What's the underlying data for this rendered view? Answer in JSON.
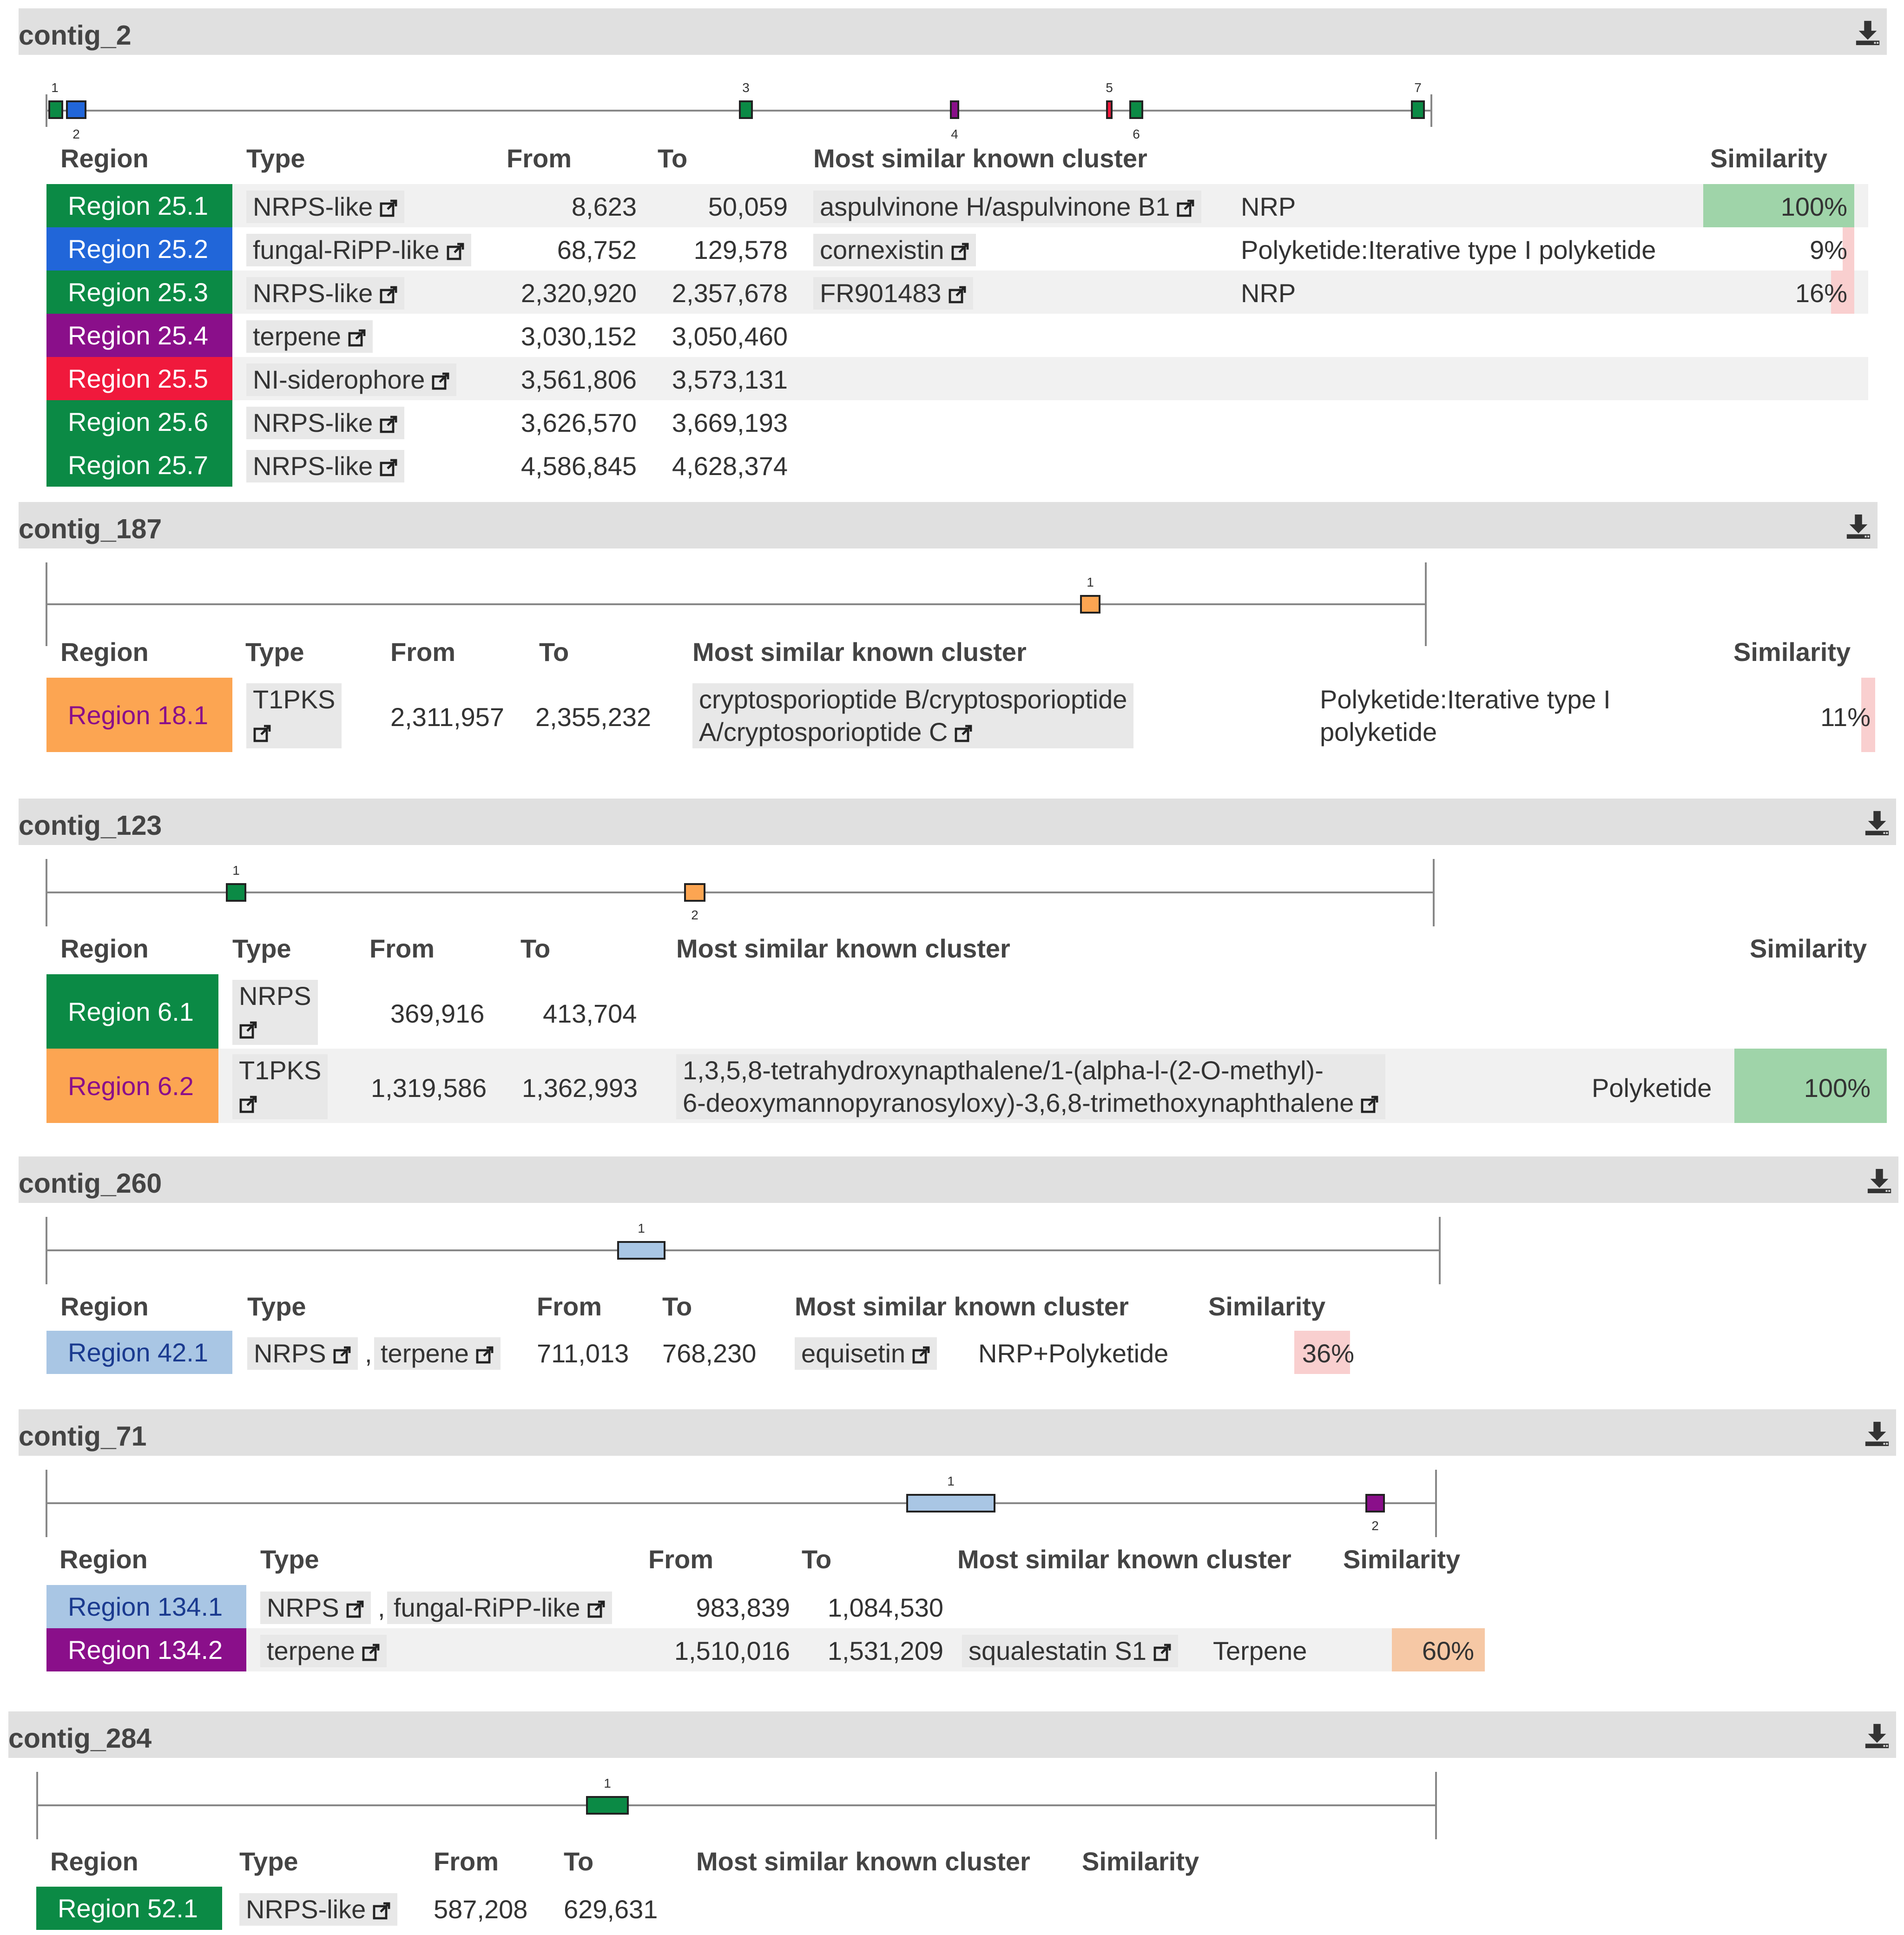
{
  "colors": {
    "nrps": "#0b8a45",
    "fungal_ripp": "#2166d9",
    "terpene": "#8a0f8a",
    "siderophore": "#f0193c",
    "t1pks": "#fca552",
    "hybrid": "#a9c6e4",
    "sim_high": "#9fd4a9",
    "sim_low": "#f9cfcf",
    "sim_mid": "#f6c8a5"
  },
  "headers": {
    "region": "Region",
    "type": "Type",
    "from": "From",
    "to": "To",
    "cluster": "Most similar known cluster",
    "similarity": "Similarity"
  },
  "contigs": [
    {
      "name": "contig_2",
      "map_labels": [
        "1",
        "2",
        "3",
        "4",
        "5",
        "6",
        "7"
      ],
      "regions": [
        {
          "label": "Region 25.1",
          "type": "NRPS-like",
          "from": "8,623",
          "to": "50,059",
          "cluster": "aspulvinone H/aspulvinone B1",
          "class": "NRP",
          "similarity": "100%",
          "sim_value": 1.0
        },
        {
          "label": "Region 25.2",
          "type": "fungal-RiPP-like",
          "from": "68,752",
          "to": "129,578",
          "cluster": "cornexistin",
          "class": "Polyketide:Iterative type I polyketide",
          "similarity": "9%",
          "sim_value": 0.09
        },
        {
          "label": "Region 25.3",
          "type": "NRPS-like",
          "from": "2,320,920",
          "to": "2,357,678",
          "cluster": "FR901483",
          "class": "NRP",
          "similarity": "16%",
          "sim_value": 0.16
        },
        {
          "label": "Region 25.4",
          "type": "terpene",
          "from": "3,030,152",
          "to": "3,050,460"
        },
        {
          "label": "Region 25.5",
          "type": "NI-siderophore",
          "from": "3,561,806",
          "to": "3,573,131"
        },
        {
          "label": "Region 25.6",
          "type": "NRPS-like",
          "from": "3,626,570",
          "to": "3,669,193"
        },
        {
          "label": "Region 25.7",
          "type": "NRPS-like",
          "from": "4,586,845",
          "to": "4,628,374"
        }
      ]
    },
    {
      "name": "contig_187",
      "map_labels": [
        "1"
      ],
      "regions": [
        {
          "label": "Region 18.1",
          "type_line1": "T1PKS",
          "from": "2,311,957",
          "to": "2,355,232",
          "cluster_line1": "cryptosporioptide B/cryptosporioptide",
          "cluster_line2": "A/cryptosporioptide C",
          "class_line1": "Polyketide:Iterative type I",
          "class_line2": "polyketide",
          "similarity": "11%",
          "sim_value": 0.11
        }
      ]
    },
    {
      "name": "contig_123",
      "map_labels": [
        "1",
        "2"
      ],
      "regions": [
        {
          "label": "Region 6.1",
          "type_line1": "NRPS",
          "from": "369,916",
          "to": "413,704"
        },
        {
          "label": "Region 6.2",
          "type_line1": "T1PKS",
          "from": "1,319,586",
          "to": "1,362,993",
          "cluster_line1": "1,3,5,8-tetrahydroxynapthalene/1-(alpha-l-(2-O-methyl)-",
          "cluster_line2": "6-deoxymannopyranosyloxy)-3,6,8-trimethoxynaphthalene",
          "class": "Polyketide",
          "similarity": "100%",
          "sim_value": 1.0
        }
      ]
    },
    {
      "name": "contig_260",
      "map_labels": [
        "1"
      ],
      "regions": [
        {
          "label": "Region 42.1",
          "type_a": "NRPS",
          "sep": ",",
          "type_b": "terpene",
          "from": "711,013",
          "to": "768,230",
          "cluster": "equisetin",
          "class": "NRP+Polyketide",
          "similarity": "36%",
          "sim_value": 0.36
        }
      ]
    },
    {
      "name": "contig_71",
      "map_labels": [
        "1",
        "2"
      ],
      "regions": [
        {
          "label": "Region 134.1",
          "type_a": "NRPS",
          "sep": ",",
          "type_b": "fungal-RiPP-like",
          "from": "983,839",
          "to": "1,084,530"
        },
        {
          "label": "Region 134.2",
          "type": "terpene",
          "from": "1,510,016",
          "to": "1,531,209",
          "cluster": "squalestatin S1",
          "class": "Terpene",
          "similarity": "60%",
          "sim_value": 0.6
        }
      ]
    },
    {
      "name": "contig_284",
      "map_labels": [
        "1"
      ],
      "regions": [
        {
          "label": "Region 52.1",
          "type": "NRPS-like",
          "from": "587,208",
          "to": "629,631"
        }
      ]
    }
  ]
}
